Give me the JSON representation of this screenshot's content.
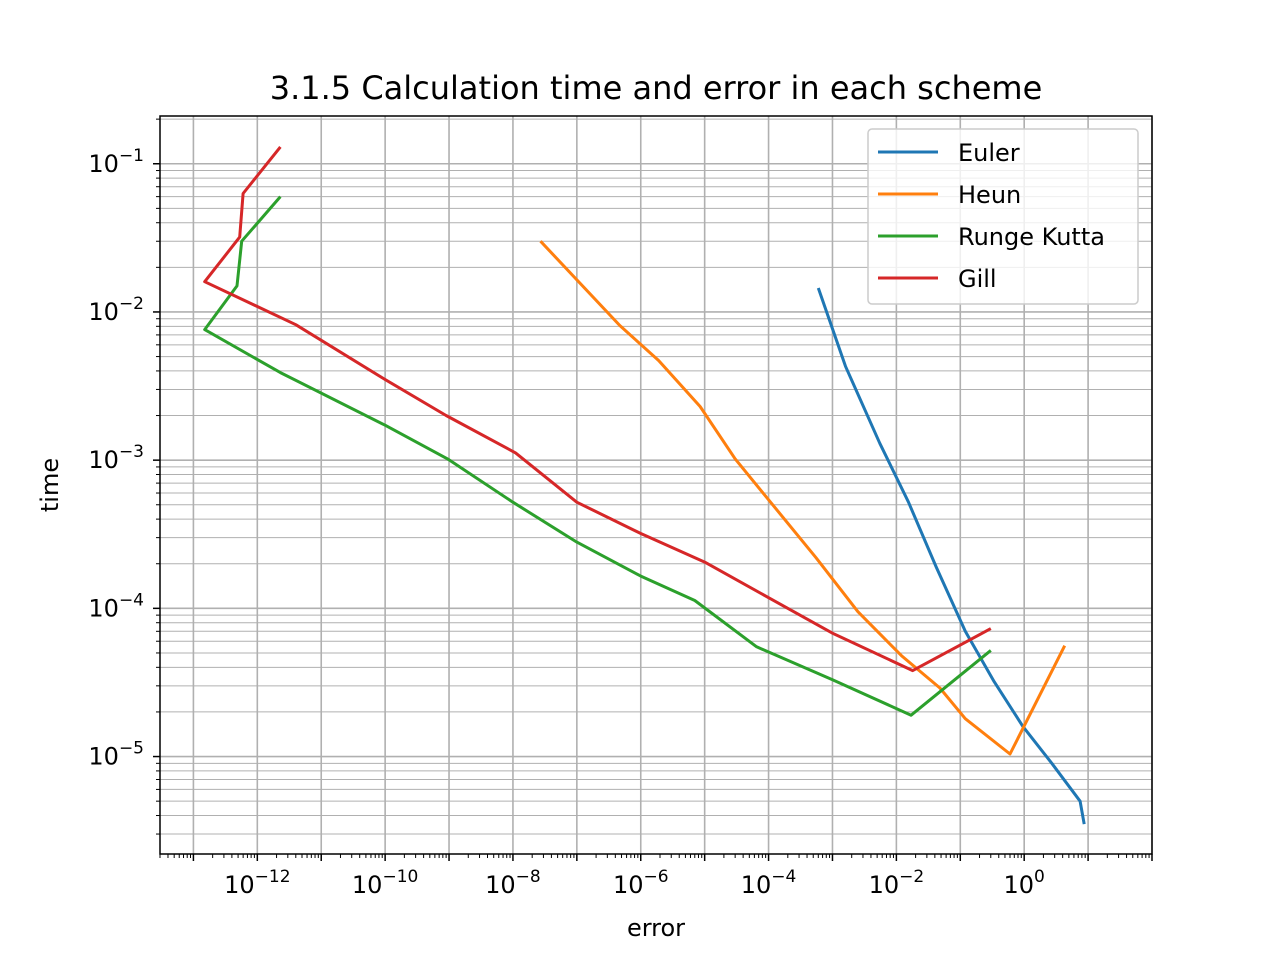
{
  "chart_data": {
    "type": "line",
    "title": "3.1.5 Calculation time and error in each scheme",
    "xlabel": "error",
    "ylabel": "time",
    "xscale": "log",
    "yscale": "log",
    "xlim": [
      3e-14,
      100.0
    ],
    "ylim": [
      2.2e-06,
      0.21
    ],
    "grid": "both major and minor",
    "legend_position": "top-right",
    "x_ticks": [
      {
        "value": 1e-12,
        "base": "10",
        "exp": "−12"
      },
      {
        "value": 1e-10,
        "base": "10",
        "exp": "−10"
      },
      {
        "value": 1e-08,
        "base": "10",
        "exp": "−8"
      },
      {
        "value": 1e-06,
        "base": "10",
        "exp": "−6"
      },
      {
        "value": 0.0001,
        "base": "10",
        "exp": "−4"
      },
      {
        "value": 0.01,
        "base": "10",
        "exp": "−2"
      },
      {
        "value": 1,
        "base": "10",
        "exp": "0"
      }
    ],
    "y_ticks": [
      {
        "value": 1e-05,
        "base": "10",
        "exp": "−5"
      },
      {
        "value": 0.0001,
        "base": "10",
        "exp": "−4"
      },
      {
        "value": 0.001,
        "base": "10",
        "exp": "−3"
      },
      {
        "value": 0.01,
        "base": "10",
        "exp": "−2"
      },
      {
        "value": 0.1,
        "base": "10",
        "exp": "−1"
      }
    ],
    "series": [
      {
        "name": "Euler",
        "color": "#1f77b4",
        "points": [
          [
            0.0006,
            0.0145
          ],
          [
            0.0016,
            0.0043
          ],
          [
            0.0055,
            0.0013
          ],
          [
            0.0155,
            0.00052
          ],
          [
            0.042,
            0.00019
          ],
          [
            0.12,
            7e-05
          ],
          [
            0.34,
            3.2e-05
          ],
          [
            0.95,
            1.6e-05
          ],
          [
            2.7,
            9e-06
          ],
          [
            7.5,
            5e-06
          ],
          [
            8.7,
            3.5e-06
          ]
        ]
      },
      {
        "name": "Heun",
        "color": "#ff7f0e",
        "points": [
          [
            2.7e-08,
            0.03
          ],
          [
            4.7e-07,
            0.0081
          ],
          [
            1.9e-06,
            0.0047
          ],
          [
            8.5e-06,
            0.0023
          ],
          [
            3e-05,
            0.00102
          ],
          [
            0.0001,
            0.00054
          ],
          [
            0.00055,
            0.00022
          ],
          [
            0.0025,
            9.5e-05
          ],
          [
            0.012,
            4.8e-05
          ],
          [
            0.048,
            2.9e-05
          ],
          [
            0.12,
            1.8e-05
          ],
          [
            0.6,
            1.04e-05
          ],
          [
            4.3,
            5.6e-05
          ]
        ]
      },
      {
        "name": "Runge Kutta",
        "color": "#2ca02c",
        "points": [
          [
            2.3e-12,
            0.06
          ],
          [
            5.7e-13,
            0.03
          ],
          [
            4.8e-13,
            0.015
          ],
          [
            1.5e-13,
            0.0076
          ],
          [
            2.3e-12,
            0.0039
          ],
          [
            1e-10,
            0.00172
          ],
          [
            9.5e-10,
            0.00102
          ],
          [
            1e-08,
            0.00052
          ],
          [
            1e-07,
            0.00028
          ],
          [
            1e-06,
            0.000165
          ],
          [
            7e-06,
            0.000113
          ],
          [
            6.5e-05,
            5.5e-05
          ],
          [
            0.001,
            3.3e-05
          ],
          [
            0.017,
            1.9e-05
          ],
          [
            0.3,
            5.2e-05
          ]
        ]
      },
      {
        "name": "Gill",
        "color": "#d62728",
        "points": [
          [
            2.3e-12,
            0.13
          ],
          [
            6e-13,
            0.063
          ],
          [
            5.3e-13,
            0.032
          ],
          [
            1.5e-13,
            0.016
          ],
          [
            4e-12,
            0.0082
          ],
          [
            1e-10,
            0.0035
          ],
          [
            9e-10,
            0.002
          ],
          [
            1.1e-08,
            0.00112
          ],
          [
            1e-07,
            0.00052
          ],
          [
            1e-06,
            0.00032
          ],
          [
            1e-05,
            0.000205
          ],
          [
            0.0001,
            0.000118
          ],
          [
            0.001,
            6.8e-05
          ],
          [
            0.018,
            3.8e-05
          ],
          [
            0.3,
            7.3e-05
          ]
        ]
      }
    ]
  }
}
